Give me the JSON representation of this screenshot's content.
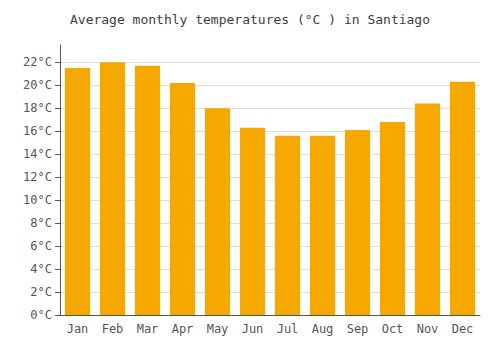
{
  "chart_data": {
    "type": "bar",
    "title": "Average monthly temperatures (°C ) in Santiago",
    "categories": [
      "Jan",
      "Feb",
      "Mar",
      "Apr",
      "May",
      "Jun",
      "Jul",
      "Aug",
      "Sep",
      "Oct",
      "Nov",
      "Dec"
    ],
    "values": [
      21.5,
      22.0,
      21.7,
      20.2,
      18.0,
      16.3,
      15.6,
      15.6,
      16.1,
      16.8,
      18.4,
      20.3
    ],
    "color": "#F5A800",
    "ylim": [
      0,
      23.5
    ],
    "yticks": [
      {
        "value": 0,
        "label": "0°C"
      },
      {
        "value": 2,
        "label": "2°C"
      },
      {
        "value": 4,
        "label": "4°C"
      },
      {
        "value": 6,
        "label": "6°C"
      },
      {
        "value": 8,
        "label": "8°C"
      },
      {
        "value": 10,
        "label": "10°C"
      },
      {
        "value": 12,
        "label": "12°C"
      },
      {
        "value": 14,
        "label": "14°C"
      },
      {
        "value": 16,
        "label": "16°C"
      },
      {
        "value": 18,
        "label": "18°C"
      },
      {
        "value": 20,
        "label": "20°C"
      },
      {
        "value": 22,
        "label": "22°C"
      }
    ],
    "grid": true
  }
}
